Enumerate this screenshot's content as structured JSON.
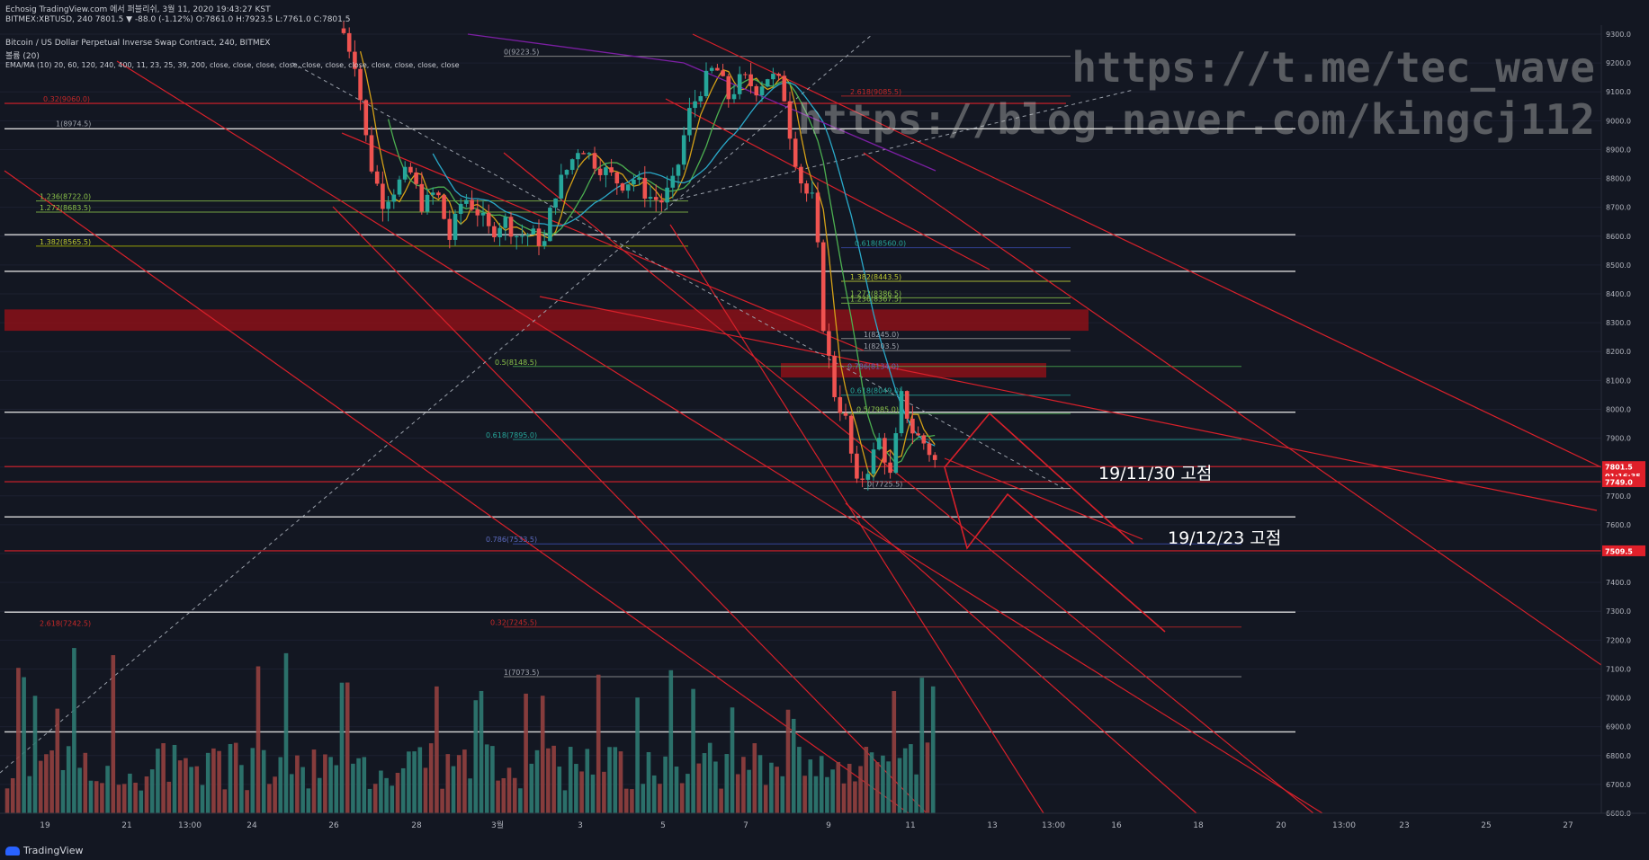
{
  "header": {
    "line1": "Echosig TradingView.com 에서 퍼블리쉬, 3월 11, 2020 19:43:27 KST",
    "line2": "BITMEX:XBTUSD, 240 7801.5 ▼ -88.0 (-1.12%) O:7861.0 H:7923.5 L:7761.0 C:7801.5",
    "title": "Bitcoin / US Dollar Perpetual Inverse Swap Contract, 240, BITMEX",
    "volume_label": "볼륨 (20)",
    "ema_label": "EMA/MA (10) 20, 60, 120, 240, 400, 11, 23, 25, 39, 200, close, close, close, close, close, close, close, close, close, close, close"
  },
  "watermarks": [
    "https://t.me/tec_wave",
    "https://blog.naver.com/kingcj112"
  ],
  "annotations": [
    "19/11/30 고점",
    "19/12/23 고점"
  ],
  "brand": "TradingView",
  "colors": {
    "background": "#131722",
    "up_candle": "#26a69a",
    "down_candle": "#ef5350",
    "trendline": "#d8202a",
    "support_zone": "#8b1018",
    "white_level": "#d9d9d9",
    "price_badge": "#e0202a"
  },
  "chart_data": {
    "type": "candlestick",
    "symbol": "BITMEX:XBTUSD",
    "interval": "240",
    "ylim": [
      6600,
      9300
    ],
    "y_ticks": [
      9300,
      9200,
      9100,
      9000,
      8900,
      8800,
      8700,
      8600,
      8500,
      8400,
      8300,
      8200,
      8100,
      8000,
      7900,
      7800,
      7700,
      7600,
      7500,
      7400,
      7300,
      7200,
      7100,
      7000,
      6900,
      6800,
      6700,
      6600
    ],
    "x_ticks": [
      "19",
      "21",
      "13:00",
      "24",
      "26",
      "28",
      "3월",
      "3",
      "5",
      "7",
      "9",
      "11",
      "13",
      "13:00",
      "16",
      "18",
      "20",
      "13:00",
      "23",
      "25",
      "27"
    ],
    "price_labels": [
      {
        "text": "7801.5",
        "price": 7801.5
      },
      {
        "text": "01:16:35",
        "price": 7770
      },
      {
        "text": "7749.0",
        "price": 7749
      },
      {
        "text": "7509.5",
        "price": 7509.5
      }
    ],
    "white_levels": [
      8972,
      8605,
      8478,
      7990,
      7627,
      7297,
      6882
    ],
    "red_levels": [
      7801.5,
      7749,
      7509.5,
      9060
    ],
    "fib_labels": [
      {
        "text": "0(9223.5)",
        "price": 9223.5
      },
      {
        "text": "0.32(9060.0)",
        "price": 9060
      },
      {
        "text": "1(8974.5)",
        "price": 8974.5
      },
      {
        "text": "2.618(9085.5)",
        "price": 9085.5
      },
      {
        "text": "1.236(8722.0)",
        "price": 8722
      },
      {
        "text": "1.272(8683.5)",
        "price": 8683.5
      },
      {
        "text": "1.382(8565.5)",
        "price": 8565.5
      },
      {
        "text": "0.618(8560.0)",
        "price": 8560
      },
      {
        "text": "1.382(8443.5)",
        "price": 8443.5
      },
      {
        "text": "1.272(8386.5)",
        "price": 8386.5
      },
      {
        "text": "1.236(8367.5)",
        "price": 8367.5
      },
      {
        "text": "1(8245.0)",
        "price": 8245
      },
      {
        "text": "1(8203.5)",
        "price": 8203.5
      },
      {
        "text": "0.5(8148.5)",
        "price": 8148.5
      },
      {
        "text": "0.786(8134.0)",
        "price": 8134
      },
      {
        "text": "0.618(8049.0)",
        "price": 8049
      },
      {
        "text": "0.5(7985.0)",
        "price": 7985
      },
      {
        "text": "0.618(7895.0)",
        "price": 7895
      },
      {
        "text": "0(7725.5)",
        "price": 7725.5
      },
      {
        "text": "0.786(7533.5)",
        "price": 7533.5
      },
      {
        "text": "2.618(7242.5)",
        "price": 7242.5
      },
      {
        "text": "0.32(7245.5)",
        "price": 7245.5
      },
      {
        "text": "1(7073.5)",
        "price": 7073.5
      }
    ]
  }
}
